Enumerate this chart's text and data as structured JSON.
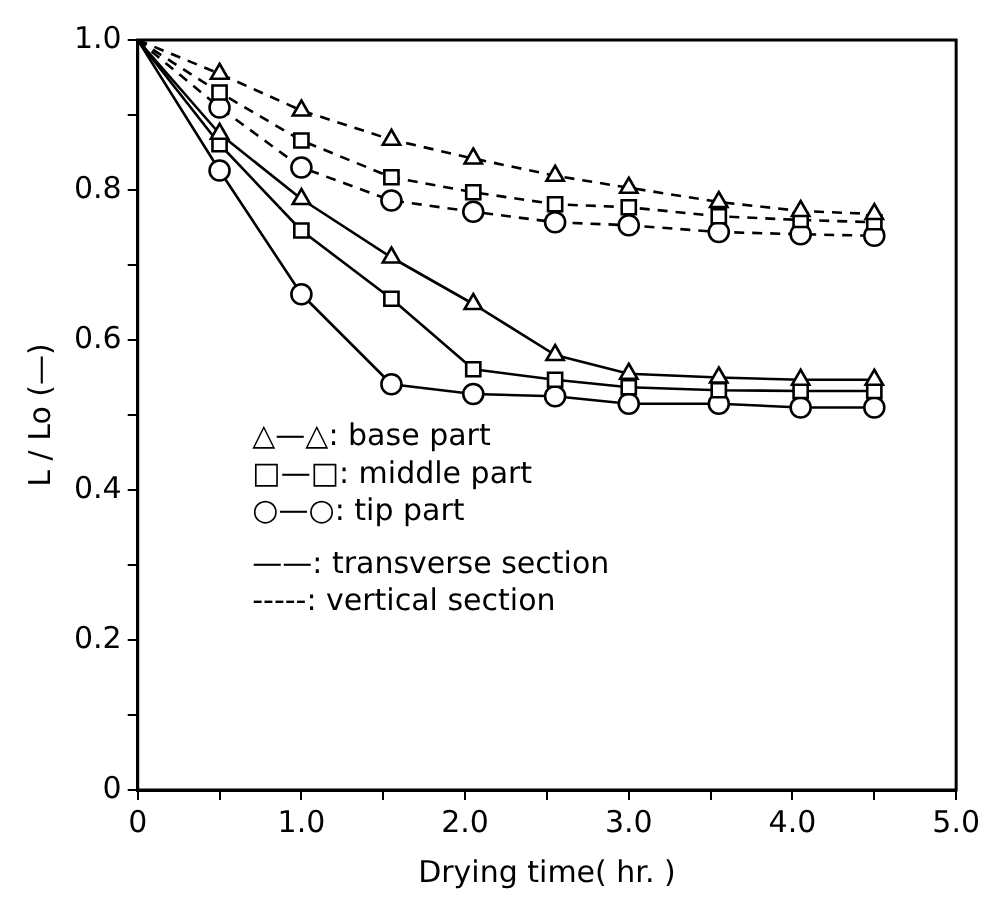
{
  "chart_data": {
    "type": "line",
    "xlabel": "Drying time( hr. )",
    "ylabel": "L / Lo (—)",
    "xlim": [
      0,
      5
    ],
    "ylim": [
      0,
      1
    ],
    "xticks": [
      0,
      {
        "value": 0.5,
        "label": null
      },
      {
        "value": 1,
        "label": "1.0"
      },
      {
        "value": 1.5,
        "label": null
      },
      {
        "value": 2,
        "label": "2.0"
      },
      {
        "value": 2.5,
        "label": null
      },
      {
        "value": 3,
        "label": "3.0"
      },
      {
        "value": 3.5,
        "label": null
      },
      {
        "value": 4,
        "label": "4.0"
      },
      {
        "value": 4.5,
        "label": null
      },
      {
        "value": 5,
        "label": "5.0"
      }
    ],
    "yticks": [
      0,
      {
        "value": 0.1,
        "label": null
      },
      0.2,
      {
        "value": 0.3,
        "label": null
      },
      0.4,
      {
        "value": 0.5,
        "label": null
      },
      0.6,
      {
        "value": 0.7,
        "label": null
      },
      0.8,
      {
        "value": 0.9,
        "label": null
      },
      {
        "value": 1,
        "label": "1.0"
      }
    ],
    "x": [
      0,
      0.5,
      1.0,
      1.55,
      2.05,
      2.55,
      3.0,
      3.55,
      4.05,
      4.5
    ],
    "series": [
      {
        "color": "#000000",
        "marker": "triangle",
        "line_style": "dashed",
        "values": [
          1,
          0.955,
          0.906,
          0.867,
          0.842,
          0.819,
          0.803,
          0.784,
          0.772,
          0.768
        ]
      },
      {
        "color": "#000000",
        "marker": "square",
        "line_style": "dashed",
        "values": [
          1,
          0.93,
          0.866,
          0.817,
          0.797,
          0.781,
          0.777,
          0.765,
          0.76,
          0.757
        ]
      },
      {
        "color": "#000000",
        "marker": "circle",
        "line_style": "dashed",
        "values": [
          1,
          0.91,
          0.83,
          0.786,
          0.771,
          0.757,
          0.753,
          0.744,
          0.741,
          0.739
        ]
      },
      {
        "color": "#000000",
        "marker": "triangle",
        "line_style": "solid",
        "values": [
          1,
          0.875,
          0.788,
          0.71,
          0.648,
          0.58,
          0.555,
          0.55,
          0.547,
          0.547
        ]
      },
      {
        "color": "#000000",
        "marker": "square",
        "line_style": "solid",
        "values": [
          1,
          0.861,
          0.746,
          0.655,
          0.561,
          0.547,
          0.537,
          0.533,
          0.532,
          0.532
        ]
      },
      {
        "color": "#000000",
        "marker": "circle",
        "line_style": "solid",
        "values": [
          1,
          0.826,
          0.661,
          0.541,
          0.528,
          0.525,
          0.515,
          0.515,
          0.51,
          0.51
        ]
      }
    ],
    "annotations": [
      "△—△: base part",
      "□—□: middle part",
      "○—○: tip part",
      "——: transverse section",
      "-----: vertical section"
    ],
    "grid": false,
    "legend": false
  }
}
